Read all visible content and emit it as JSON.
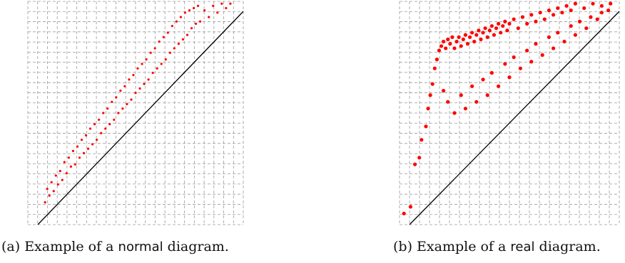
{
  "figure": {
    "panel_a": {
      "caption_prefix": "(a) Example of a",
      "caption_keyword": "normal",
      "caption_suffix": "diagram."
    },
    "panel_b": {
      "caption_prefix": "(b) Example of a",
      "caption_keyword": "real",
      "caption_suffix": "diagram."
    }
  },
  "chart_data": [
    {
      "type": "scatter",
      "title": "",
      "xlabel": "",
      "ylabel": "",
      "xlim": [
        0,
        1
      ],
      "ylim": [
        0,
        1
      ],
      "grid": true,
      "diagonal": true,
      "point_color": "#ff0000",
      "description_of_distribution": "narrow band just above the diagonal",
      "points": [
        [
          0.08,
          0.1
        ],
        [
          0.09,
          0.16
        ],
        [
          0.1,
          0.13
        ],
        [
          0.11,
          0.19
        ],
        [
          0.12,
          0.15
        ],
        [
          0.13,
          0.22
        ],
        [
          0.14,
          0.18
        ],
        [
          0.15,
          0.24
        ],
        [
          0.16,
          0.2
        ],
        [
          0.17,
          0.28
        ],
        [
          0.18,
          0.23
        ],
        [
          0.19,
          0.3
        ],
        [
          0.2,
          0.26
        ],
        [
          0.21,
          0.33
        ],
        [
          0.22,
          0.27
        ],
        [
          0.23,
          0.35
        ],
        [
          0.24,
          0.3
        ],
        [
          0.25,
          0.38
        ],
        [
          0.26,
          0.32
        ],
        [
          0.27,
          0.4
        ],
        [
          0.28,
          0.34
        ],
        [
          0.29,
          0.43
        ],
        [
          0.3,
          0.36
        ],
        [
          0.31,
          0.45
        ],
        [
          0.32,
          0.38
        ],
        [
          0.33,
          0.47
        ],
        [
          0.34,
          0.41
        ],
        [
          0.35,
          0.5
        ],
        [
          0.36,
          0.43
        ],
        [
          0.37,
          0.52
        ],
        [
          0.38,
          0.45
        ],
        [
          0.39,
          0.55
        ],
        [
          0.4,
          0.47
        ],
        [
          0.41,
          0.57
        ],
        [
          0.42,
          0.5
        ],
        [
          0.43,
          0.6
        ],
        [
          0.44,
          0.52
        ],
        [
          0.45,
          0.62
        ],
        [
          0.46,
          0.54
        ],
        [
          0.47,
          0.65
        ],
        [
          0.48,
          0.56
        ],
        [
          0.49,
          0.67
        ],
        [
          0.5,
          0.59
        ],
        [
          0.51,
          0.7
        ],
        [
          0.52,
          0.61
        ],
        [
          0.53,
          0.72
        ],
        [
          0.54,
          0.63
        ],
        [
          0.55,
          0.74
        ],
        [
          0.56,
          0.65
        ],
        [
          0.57,
          0.77
        ],
        [
          0.58,
          0.68
        ],
        [
          0.59,
          0.79
        ],
        [
          0.6,
          0.7
        ],
        [
          0.61,
          0.82
        ],
        [
          0.62,
          0.72
        ],
        [
          0.63,
          0.84
        ],
        [
          0.64,
          0.74
        ],
        [
          0.65,
          0.86
        ],
        [
          0.66,
          0.77
        ],
        [
          0.67,
          0.89
        ],
        [
          0.68,
          0.79
        ],
        [
          0.69,
          0.91
        ],
        [
          0.7,
          0.81
        ],
        [
          0.71,
          0.93
        ],
        [
          0.72,
          0.83
        ],
        [
          0.73,
          0.95
        ],
        [
          0.74,
          0.85
        ],
        [
          0.75,
          0.96
        ],
        [
          0.76,
          0.88
        ],
        [
          0.77,
          0.97
        ],
        [
          0.78,
          0.9
        ],
        [
          0.79,
          0.98
        ],
        [
          0.8,
          0.91
        ],
        [
          0.82,
          0.96
        ],
        [
          0.84,
          0.93
        ],
        [
          0.86,
          0.98
        ],
        [
          0.88,
          0.95
        ],
        [
          0.9,
          0.99
        ],
        [
          0.92,
          0.97
        ],
        [
          0.94,
          0.99
        ]
      ]
    },
    {
      "type": "scatter",
      "title": "",
      "xlabel": "",
      "ylabel": "",
      "xlim": [
        0,
        1
      ],
      "ylim": [
        0,
        1
      ],
      "grid": true,
      "diagonal": true,
      "point_color": "#ff0000",
      "description_of_distribution": "wide triangular cloud above the diagonal, densest near upper-left and along the diagonal",
      "points": [
        [
          0.02,
          0.05
        ],
        [
          0.05,
          0.08
        ],
        [
          0.07,
          0.27
        ],
        [
          0.09,
          0.3
        ],
        [
          0.1,
          0.38
        ],
        [
          0.12,
          0.44
        ],
        [
          0.13,
          0.52
        ],
        [
          0.14,
          0.58
        ],
        [
          0.15,
          0.63
        ],
        [
          0.16,
          0.7
        ],
        [
          0.17,
          0.74
        ],
        [
          0.18,
          0.78
        ],
        [
          0.19,
          0.8
        ],
        [
          0.2,
          0.82
        ],
        [
          0.21,
          0.79
        ],
        [
          0.22,
          0.83
        ],
        [
          0.23,
          0.81
        ],
        [
          0.24,
          0.84
        ],
        [
          0.25,
          0.79
        ],
        [
          0.26,
          0.82
        ],
        [
          0.27,
          0.84
        ],
        [
          0.28,
          0.8
        ],
        [
          0.29,
          0.83
        ],
        [
          0.3,
          0.85
        ],
        [
          0.31,
          0.81
        ],
        [
          0.32,
          0.84
        ],
        [
          0.33,
          0.86
        ],
        [
          0.34,
          0.82
        ],
        [
          0.35,
          0.85
        ],
        [
          0.36,
          0.87
        ],
        [
          0.37,
          0.83
        ],
        [
          0.38,
          0.86
        ],
        [
          0.39,
          0.88
        ],
        [
          0.4,
          0.84
        ],
        [
          0.41,
          0.87
        ],
        [
          0.42,
          0.89
        ],
        [
          0.43,
          0.85
        ],
        [
          0.44,
          0.88
        ],
        [
          0.45,
          0.9
        ],
        [
          0.46,
          0.86
        ],
        [
          0.47,
          0.89
        ],
        [
          0.48,
          0.91
        ],
        [
          0.49,
          0.87
        ],
        [
          0.5,
          0.9
        ],
        [
          0.52,
          0.92
        ],
        [
          0.54,
          0.88
        ],
        [
          0.56,
          0.93
        ],
        [
          0.58,
          0.9
        ],
        [
          0.6,
          0.94
        ],
        [
          0.62,
          0.91
        ],
        [
          0.64,
          0.95
        ],
        [
          0.66,
          0.92
        ],
        [
          0.68,
          0.96
        ],
        [
          0.7,
          0.94
        ],
        [
          0.72,
          0.97
        ],
        [
          0.74,
          0.95
        ],
        [
          0.76,
          0.98
        ],
        [
          0.78,
          0.96
        ],
        [
          0.8,
          0.99
        ],
        [
          0.84,
          0.97
        ],
        [
          0.88,
          0.99
        ],
        [
          0.92,
          0.98
        ],
        [
          0.96,
          0.99
        ],
        [
          0.2,
          0.6
        ],
        [
          0.22,
          0.55
        ],
        [
          0.25,
          0.5
        ],
        [
          0.28,
          0.58
        ],
        [
          0.3,
          0.52
        ],
        [
          0.33,
          0.62
        ],
        [
          0.35,
          0.55
        ],
        [
          0.38,
          0.65
        ],
        [
          0.4,
          0.58
        ],
        [
          0.42,
          0.68
        ],
        [
          0.45,
          0.62
        ],
        [
          0.48,
          0.72
        ],
        [
          0.5,
          0.66
        ],
        [
          0.52,
          0.75
        ],
        [
          0.55,
          0.7
        ],
        [
          0.58,
          0.78
        ],
        [
          0.6,
          0.73
        ],
        [
          0.62,
          0.81
        ],
        [
          0.65,
          0.76
        ],
        [
          0.68,
          0.84
        ],
        [
          0.7,
          0.79
        ],
        [
          0.72,
          0.86
        ],
        [
          0.75,
          0.82
        ],
        [
          0.78,
          0.89
        ],
        [
          0.8,
          0.85
        ],
        [
          0.82,
          0.91
        ],
        [
          0.85,
          0.88
        ],
        [
          0.87,
          0.93
        ],
        [
          0.9,
          0.92
        ],
        [
          0.92,
          0.95
        ],
        [
          0.95,
          0.96
        ]
      ]
    }
  ]
}
